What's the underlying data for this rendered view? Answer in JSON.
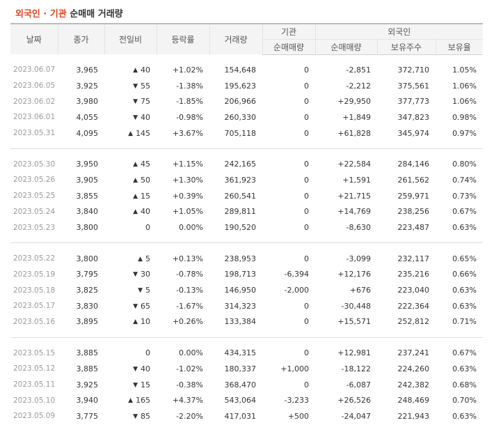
{
  "title": {
    "part1": "외국인 · 기관",
    "part2": " 순매매 거래량"
  },
  "headers": {
    "date": "날짜",
    "close": "종가",
    "change": "전일비",
    "rate": "등락률",
    "volume": "거래량",
    "inst_group": "기관",
    "foreign_group": "외국인",
    "inst_net": "순매매량",
    "foreign_net": "순매매량",
    "foreign_holdings": "보유주수",
    "foreign_ratio": "보유율"
  },
  "icons": {
    "up": "triangle-up-icon",
    "down": "triangle-down-icon"
  },
  "colors": {
    "up": "#d6181c",
    "down": "#1f6fc4",
    "title_accent": "#e4441c"
  },
  "groups": [
    [
      {
        "date": "2023.06.07",
        "close": "3,965",
        "dir": "up",
        "change": "40",
        "rate": "+1.02%",
        "volume": "154,648",
        "inst": "0",
        "inst_dir": "flat",
        "foreign": "-2,851",
        "foreign_dir": "down",
        "holdings": "372,710",
        "ratio": "1.05%"
      },
      {
        "date": "2023.06.05",
        "close": "3,925",
        "dir": "down",
        "change": "55",
        "rate": "-1.38%",
        "volume": "195,623",
        "inst": "0",
        "inst_dir": "flat",
        "foreign": "-2,212",
        "foreign_dir": "down",
        "holdings": "375,561",
        "ratio": "1.06%"
      },
      {
        "date": "2023.06.02",
        "close": "3,980",
        "dir": "down",
        "change": "75",
        "rate": "-1.85%",
        "volume": "206,966",
        "inst": "0",
        "inst_dir": "flat",
        "foreign": "+29,950",
        "foreign_dir": "up",
        "holdings": "377,773",
        "ratio": "1.06%"
      },
      {
        "date": "2023.06.01",
        "close": "4,055",
        "dir": "down",
        "change": "40",
        "rate": "-0.98%",
        "volume": "260,330",
        "inst": "0",
        "inst_dir": "flat",
        "foreign": "+1,849",
        "foreign_dir": "up",
        "holdings": "347,823",
        "ratio": "0.98%"
      },
      {
        "date": "2023.05.31",
        "close": "4,095",
        "dir": "up",
        "change": "145",
        "rate": "+3.67%",
        "volume": "705,118",
        "inst": "0",
        "inst_dir": "flat",
        "foreign": "+61,828",
        "foreign_dir": "up",
        "holdings": "345,974",
        "ratio": "0.97%"
      }
    ],
    [
      {
        "date": "2023.05.30",
        "close": "3,950",
        "dir": "up",
        "change": "45",
        "rate": "+1.15%",
        "volume": "242,165",
        "inst": "0",
        "inst_dir": "flat",
        "foreign": "+22,584",
        "foreign_dir": "up",
        "holdings": "284,146",
        "ratio": "0.80%"
      },
      {
        "date": "2023.05.26",
        "close": "3,905",
        "dir": "up",
        "change": "50",
        "rate": "+1.30%",
        "volume": "361,923",
        "inst": "0",
        "inst_dir": "flat",
        "foreign": "+1,591",
        "foreign_dir": "up",
        "holdings": "261,562",
        "ratio": "0.74%"
      },
      {
        "date": "2023.05.25",
        "close": "3,855",
        "dir": "up",
        "change": "15",
        "rate": "+0.39%",
        "volume": "260,541",
        "inst": "0",
        "inst_dir": "flat",
        "foreign": "+21,715",
        "foreign_dir": "up",
        "holdings": "259,971",
        "ratio": "0.73%"
      },
      {
        "date": "2023.05.24",
        "close": "3,840",
        "dir": "up",
        "change": "40",
        "rate": "+1.05%",
        "volume": "289,811",
        "inst": "0",
        "inst_dir": "flat",
        "foreign": "+14,769",
        "foreign_dir": "up",
        "holdings": "238,256",
        "ratio": "0.67%"
      },
      {
        "date": "2023.05.23",
        "close": "3,800",
        "dir": "flat",
        "change": "0",
        "rate": "0.00%",
        "volume": "190,520",
        "inst": "0",
        "inst_dir": "flat",
        "foreign": "-8,630",
        "foreign_dir": "down",
        "holdings": "223,487",
        "ratio": "0.63%"
      }
    ],
    [
      {
        "date": "2023.05.22",
        "close": "3,800",
        "dir": "up",
        "change": "5",
        "rate": "+0.13%",
        "volume": "238,953",
        "inst": "0",
        "inst_dir": "flat",
        "foreign": "-3,099",
        "foreign_dir": "down",
        "holdings": "232,117",
        "ratio": "0.65%"
      },
      {
        "date": "2023.05.19",
        "close": "3,795",
        "dir": "down",
        "change": "30",
        "rate": "-0.78%",
        "volume": "198,713",
        "inst": "-6,394",
        "inst_dir": "down",
        "foreign": "+12,176",
        "foreign_dir": "up",
        "holdings": "235,216",
        "ratio": "0.66%"
      },
      {
        "date": "2023.05.18",
        "close": "3,825",
        "dir": "down",
        "change": "5",
        "rate": "-0.13%",
        "volume": "146,950",
        "inst": "-2,000",
        "inst_dir": "down",
        "foreign": "+676",
        "foreign_dir": "up",
        "holdings": "223,040",
        "ratio": "0.63%"
      },
      {
        "date": "2023.05.17",
        "close": "3,830",
        "dir": "down",
        "change": "65",
        "rate": "-1.67%",
        "volume": "314,323",
        "inst": "0",
        "inst_dir": "flat",
        "foreign": "-30,448",
        "foreign_dir": "down",
        "holdings": "222,364",
        "ratio": "0.63%"
      },
      {
        "date": "2023.05.16",
        "close": "3,895",
        "dir": "up",
        "change": "10",
        "rate": "+0.26%",
        "volume": "133,384",
        "inst": "0",
        "inst_dir": "flat",
        "foreign": "+15,571",
        "foreign_dir": "up",
        "holdings": "252,812",
        "ratio": "0.71%"
      }
    ],
    [
      {
        "date": "2023.05.15",
        "close": "3,885",
        "dir": "flat",
        "change": "0",
        "rate": "0.00%",
        "volume": "434,315",
        "inst": "0",
        "inst_dir": "flat",
        "foreign": "+12,981",
        "foreign_dir": "up",
        "holdings": "237,241",
        "ratio": "0.67%"
      },
      {
        "date": "2023.05.12",
        "close": "3,885",
        "dir": "down",
        "change": "40",
        "rate": "-1.02%",
        "volume": "180,337",
        "inst": "+1,000",
        "inst_dir": "up",
        "foreign": "-18,122",
        "foreign_dir": "down",
        "holdings": "224,260",
        "ratio": "0.63%"
      },
      {
        "date": "2023.05.11",
        "close": "3,925",
        "dir": "down",
        "change": "15",
        "rate": "-0.38%",
        "volume": "368,470",
        "inst": "0",
        "inst_dir": "flat",
        "foreign": "-6,087",
        "foreign_dir": "down",
        "holdings": "242,382",
        "ratio": "0.68%"
      },
      {
        "date": "2023.05.10",
        "close": "3,940",
        "dir": "up",
        "change": "165",
        "rate": "+4.37%",
        "volume": "543,064",
        "inst": "-3,233",
        "inst_dir": "down",
        "foreign": "+26,526",
        "foreign_dir": "up",
        "holdings": "248,469",
        "ratio": "0.70%"
      },
      {
        "date": "2023.05.09",
        "close": "3,775",
        "dir": "down",
        "change": "85",
        "rate": "-2.20%",
        "volume": "417,031",
        "inst": "+500",
        "inst_dir": "up",
        "foreign": "-24,047",
        "foreign_dir": "down",
        "holdings": "221,943",
        "ratio": "0.63%"
      }
    ]
  ]
}
